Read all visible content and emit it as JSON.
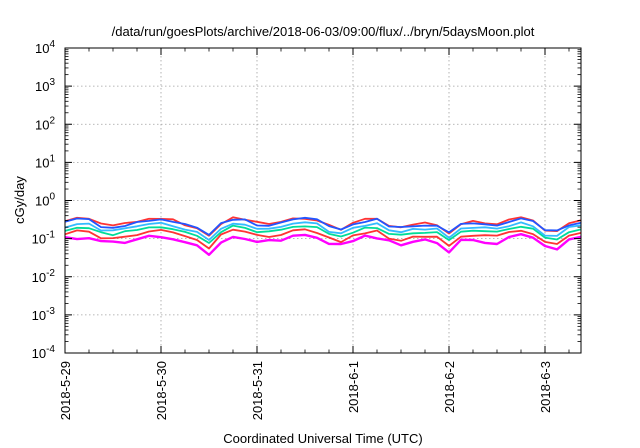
{
  "chart_data": {
    "type": "line",
    "title": "/data/run/goesPlots/archive/2018-06-03/09:00/flux/../bryn/5daysMoon.plot",
    "xlabel": "Coordinated Universal Time (UTC)",
    "ylabel": "cGy/day",
    "y_scale": "log",
    "ylim": [
      0.0001,
      10000
    ],
    "y_ticks": [
      {
        "base": "10",
        "exp": "-4"
      },
      {
        "base": "10",
        "exp": "-3"
      },
      {
        "base": "10",
        "exp": "-2"
      },
      {
        "base": "10",
        "exp": "-1"
      },
      {
        "base": "10",
        "exp": "0"
      },
      {
        "base": "10",
        "exp": "1"
      },
      {
        "base": "10",
        "exp": "2"
      },
      {
        "base": "10",
        "exp": "3"
      },
      {
        "base": "10",
        "exp": "4"
      }
    ],
    "x_ticks": [
      "2018-5-29",
      "2018-5-30",
      "2018-5-31",
      "2018-6-1",
      "2018-6-2",
      "2018-6-3"
    ],
    "xlim": [
      "2018-05-29T00:00",
      "2018-06-03T09:00"
    ],
    "grid": true,
    "x_step_hours": 3,
    "series": [
      {
        "color": "#ff00ff",
        "level": 0.105,
        "noise": 0.32
      },
      {
        "color": "#ff3333",
        "level": 0.14,
        "noise": 0.14
      },
      {
        "color": "#00dd99",
        "level": 0.18,
        "noise": 0.12
      },
      {
        "color": "#33bbff",
        "level": 0.22,
        "noise": 0.12
      },
      {
        "color": "#ff3333",
        "level": 0.3,
        "noise": 0.15
      },
      {
        "color": "#2255ff",
        "level": 0.28,
        "noise": 0.17
      }
    ],
    "dips": [
      {
        "at": "2018-05-30T12:00",
        "factor": 0.45
      },
      {
        "at": "2018-06-02T00:00",
        "factor": 0.42
      },
      {
        "at": "2018-06-03T01:00",
        "factor": 0.48
      },
      {
        "at": "2018-05-29T10:00",
        "factor": 0.7
      },
      {
        "at": "2018-05-31T20:00",
        "factor": 0.65
      },
      {
        "at": "2018-06-01T10:00",
        "factor": 0.6
      }
    ]
  }
}
